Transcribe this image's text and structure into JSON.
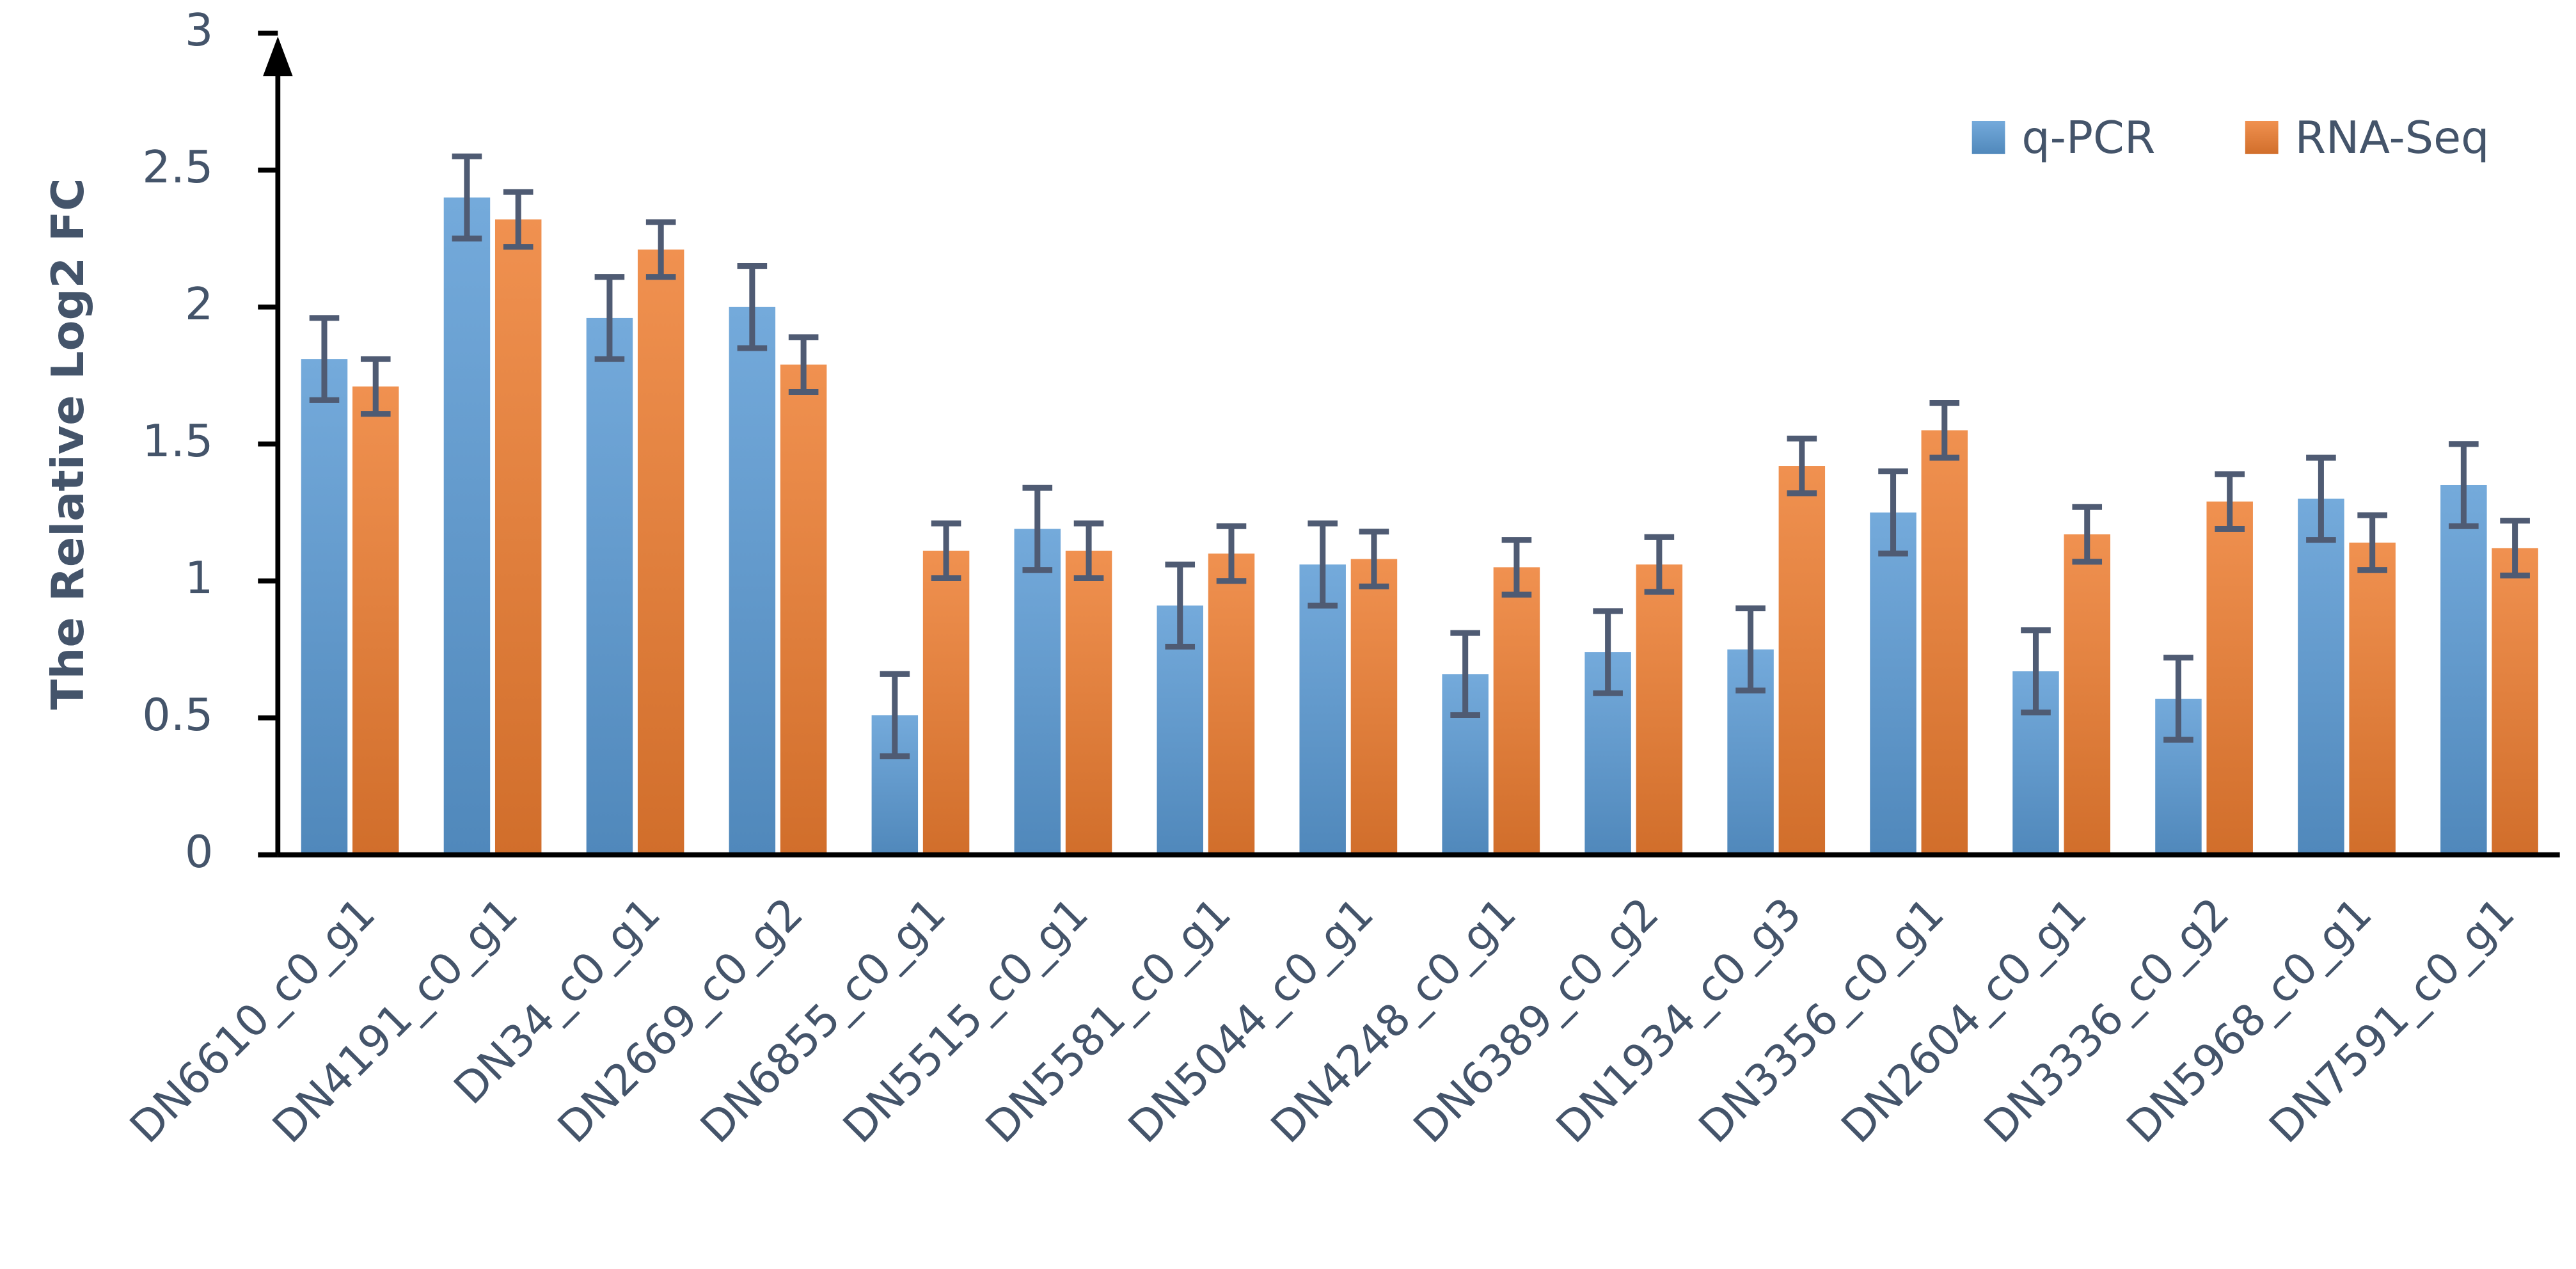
{
  "chart_data": {
    "type": "bar",
    "y_label": "The Relative Log2 FC",
    "categories": [
      "DN6610_c0_g1",
      "DN4191_c0_g1",
      "DN34_c0_g1",
      "DN2669_c0_g2",
      "DN6855_c0_g1",
      "DN5515_c0_g1",
      "DN5581_c0_g1",
      "DN5044_c0_g1",
      "DN4248_c0_g1",
      "DN6389_c0_g2",
      "DN1934_c0_g3",
      "DN3356_c0_g1",
      "DN2604_c0_g1",
      "DN3336_c0_g2",
      "DN5968_c0_g1",
      "DN7591_c0_g1"
    ],
    "series": [
      {
        "name": "q-PCR",
        "color": "#5b9bd5",
        "values": [
          1.81,
          2.4,
          1.96,
          2.0,
          0.51,
          1.19,
          0.91,
          1.06,
          0.66,
          0.74,
          0.75,
          1.25,
          0.67,
          0.57,
          1.3,
          1.35
        ],
        "errors": [
          0.15,
          0.15,
          0.15,
          0.15,
          0.15,
          0.15,
          0.15,
          0.15,
          0.15,
          0.15,
          0.15,
          0.15,
          0.15,
          0.15,
          0.15,
          0.15
        ]
      },
      {
        "name": "RNA-Seq",
        "color": "#ed7d31",
        "values": [
          1.71,
          2.32,
          2.21,
          1.79,
          1.11,
          1.11,
          1.1,
          1.08,
          1.05,
          1.06,
          1.42,
          1.55,
          1.17,
          1.29,
          1.14,
          1.12
        ],
        "errors": [
          0.1,
          0.1,
          0.1,
          0.1,
          0.1,
          0.1,
          0.1,
          0.1,
          0.1,
          0.1,
          0.1,
          0.1,
          0.1,
          0.1,
          0.1,
          0.1
        ]
      }
    ],
    "ylim": [
      0,
      3
    ],
    "yticks": [
      0,
      0.5,
      1,
      1.5,
      2,
      2.5,
      3
    ],
    "grid": false,
    "legend": "top-right"
  }
}
